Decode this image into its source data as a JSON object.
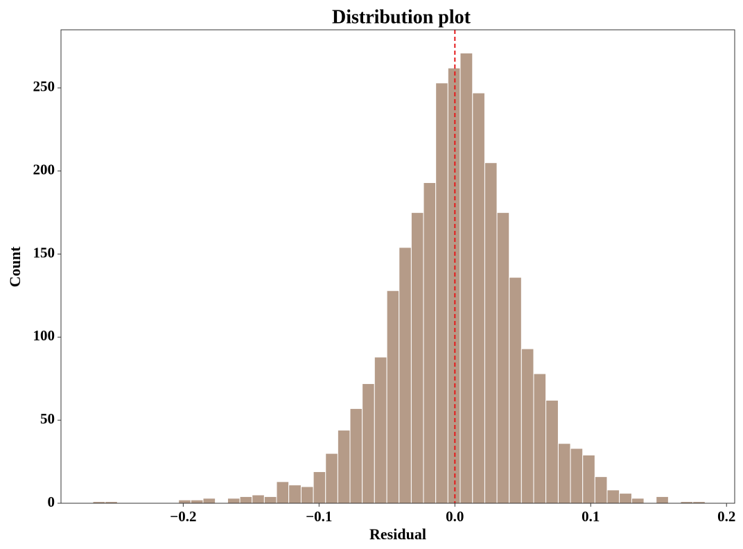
{
  "chart_data": {
    "type": "histogram",
    "title": "Distribution plot",
    "x_label": "Residual",
    "y_label": "Count",
    "bins": [
      -0.2665,
      -0.2575,
      -0.2485,
      -0.2395,
      -0.2304,
      -0.2214,
      -0.2124,
      -0.2034,
      -0.1944,
      -0.1854,
      -0.1764,
      -0.1673,
      -0.1583,
      -0.1493,
      -0.1403,
      -0.1313,
      -0.1223,
      -0.1132,
      -0.1042,
      -0.0952,
      -0.0862,
      -0.0772,
      -0.0682,
      -0.0592,
      -0.0501,
      -0.0411,
      -0.0321,
      -0.0231,
      -0.0141,
      -0.0051,
      0.0039,
      0.013,
      0.022,
      0.031,
      0.04,
      0.049,
      0.058,
      0.067,
      0.0761,
      0.0851,
      0.0941,
      0.1031,
      0.1121,
      0.1211,
      0.1302,
      0.1392,
      0.1482,
      0.1572,
      0.1662,
      0.1752,
      0.1842
    ],
    "values": [
      1,
      1,
      0,
      0,
      0,
      0,
      0,
      2,
      2,
      3,
      0,
      3,
      4,
      5,
      4,
      13,
      11,
      10,
      19,
      30,
      44,
      57,
      72,
      88,
      128,
      154,
      175,
      193,
      253,
      262,
      271,
      247,
      205,
      175,
      136,
      93,
      78,
      62,
      36,
      33,
      29,
      16,
      8,
      6,
      3,
      0,
      4,
      0,
      1,
      1
    ],
    "color": "#b59b88",
    "edge_color": "#ffffff",
    "vline": 0,
    "vline_color": "#e41a1c",
    "xlim": [
      -0.29,
      0.206
    ],
    "ylim": [
      0,
      285
    ],
    "xticks": [
      {
        "value": -0.2,
        "label": "−0.2"
      },
      {
        "value": -0.1,
        "label": "−0.1"
      },
      {
        "value": 0,
        "label": "0.0"
      },
      0.1,
      0.2
    ],
    "yticks": [
      0,
      50,
      100,
      150,
      200,
      250
    ],
    "grid": false
  }
}
